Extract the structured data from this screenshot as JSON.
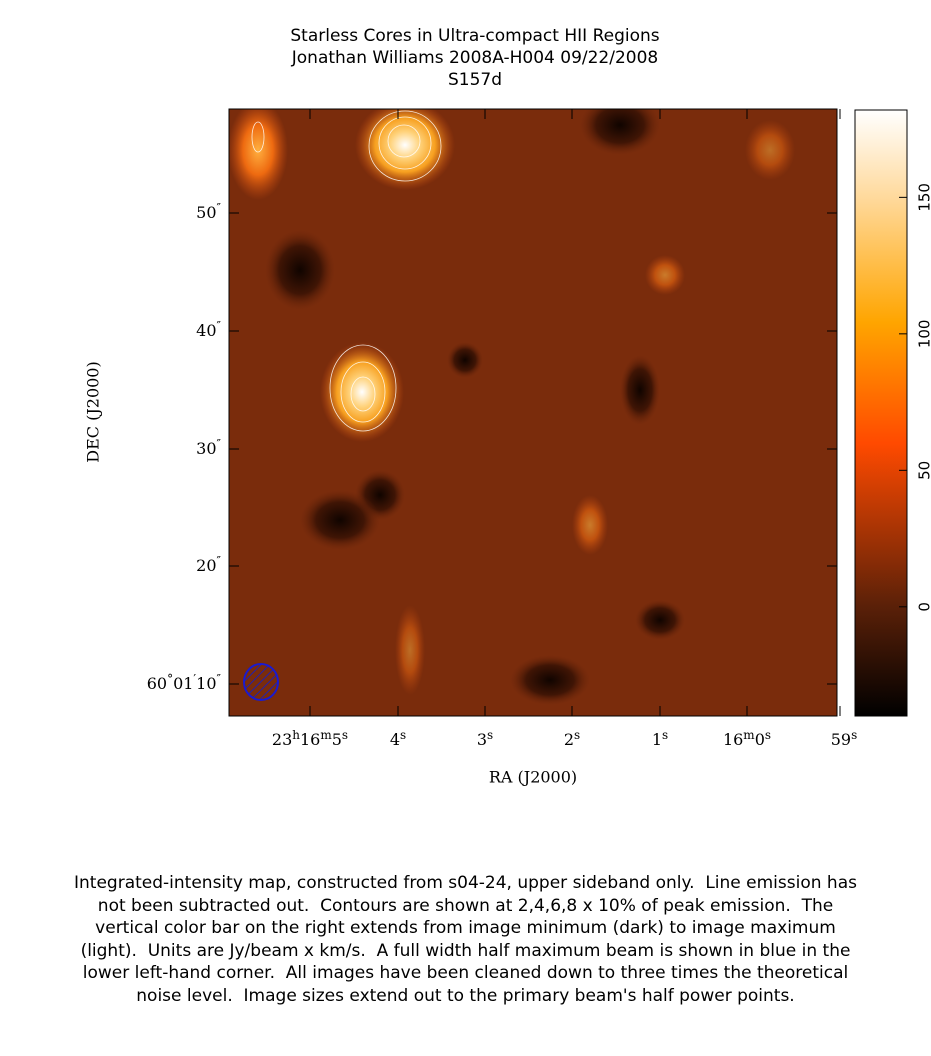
{
  "header": {
    "title": "Starless Cores in Ultra-compact HII Regions",
    "subtitle": "Jonathan Williams   2008A-H004   09/22/2008",
    "source": "S157d"
  },
  "plot": {
    "x_label": "RA (J2000)",
    "y_label": "DEC (J2000)",
    "ra_ticks": [
      [
        "23",
        "h",
        "16",
        "m",
        "5",
        "s"
      ],
      [
        "4",
        "s"
      ],
      [
        "3",
        "s"
      ],
      [
        "2",
        "s"
      ],
      [
        "1",
        "s"
      ],
      [
        "16",
        "m",
        "0",
        "s"
      ],
      [
        "59",
        "s"
      ]
    ],
    "dec_ticks": [
      [
        "50",
        "″"
      ],
      [
        "40",
        "″"
      ],
      [
        "30",
        "″"
      ],
      [
        "20",
        "″"
      ],
      [
        "60",
        "°",
        "01",
        "′",
        "10",
        "″"
      ]
    ]
  },
  "colorbar": {
    "lim": [
      -40,
      182
    ],
    "ticks": [
      0,
      50,
      100,
      150
    ]
  },
  "caption": "Integrated-intensity map, constructed from s04-24, upper sideband only.  Line emission has not been subtracted out.  Contours are shown at 2,4,6,8 x 10% of peak emission.  The vertical color bar on the right extends from image minimum (dark) to image maximum (light).  Units are Jy/beam x km/s.  A full width half maximum beam is shown in blue in the lower left-hand corner.  All images have been cleaned down to three times the theoretical noise level.  Image sizes extend out to the primary beam's half power points."
}
